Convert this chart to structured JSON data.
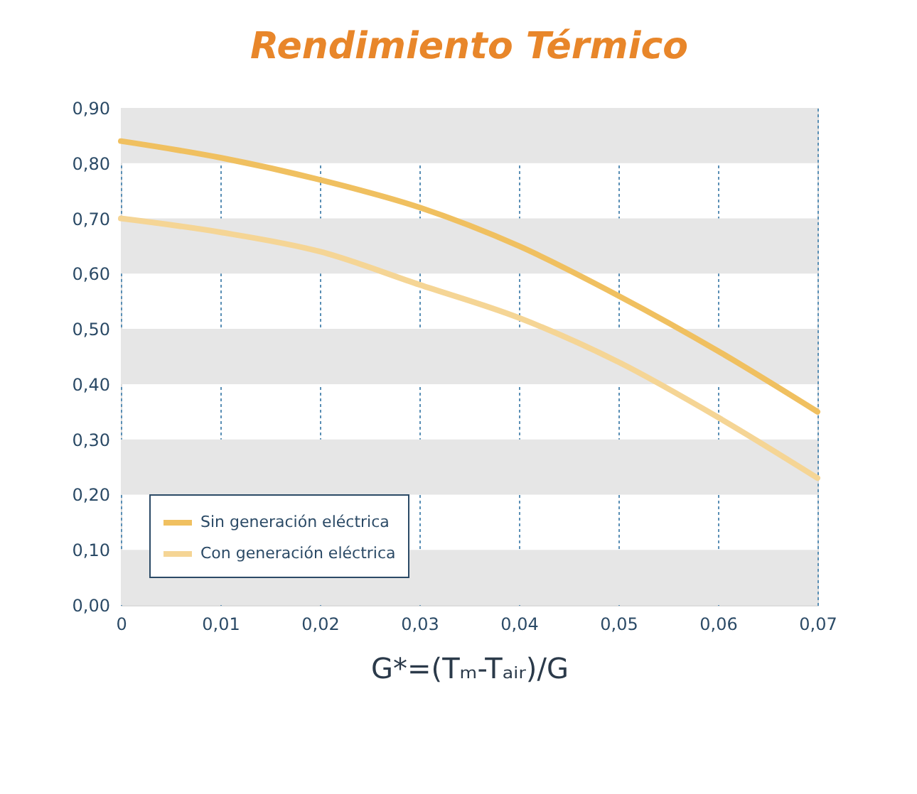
{
  "chart_data": {
    "type": "line",
    "title": "Rendimiento Térmico",
    "xlabel": "G*=(Tₘ-Tₐᵢᵣ)/G",
    "x": [
      0,
      0.01,
      0.02,
      0.03,
      0.04,
      0.05,
      0.06,
      0.07
    ],
    "series": [
      {
        "name": "Sin generación eléctrica",
        "color": "#f0c060",
        "values": [
          0.84,
          0.81,
          0.77,
          0.72,
          0.65,
          0.56,
          0.46,
          0.35
        ]
      },
      {
        "name": "Con generación eléctrica",
        "color": "#f5d595",
        "values": [
          0.7,
          0.675,
          0.64,
          0.58,
          0.52,
          0.44,
          0.34,
          0.23
        ]
      }
    ],
    "xlim": [
      0,
      0.07
    ],
    "xticks": [
      0,
      {
        "value": 0.01,
        "label": "0,01"
      },
      {
        "value": 0.02,
        "label": "0,02"
      },
      {
        "value": 0.03,
        "label": "0,03"
      },
      {
        "value": 0.04,
        "label": "0,04"
      },
      {
        "value": 0.05,
        "label": "0,05"
      },
      {
        "value": 0.06,
        "label": "0,06"
      },
      {
        "value": 0.07,
        "label": "0,07"
      }
    ],
    "ylim": [
      0,
      0.9
    ],
    "yticks": [
      {
        "value": 0,
        "label": "0,00"
      },
      {
        "value": 0.1,
        "label": "0,10"
      },
      {
        "value": 0.2,
        "label": "0,20"
      },
      {
        "value": 0.3,
        "label": "0,30"
      },
      {
        "value": 0.4,
        "label": "0,40"
      },
      {
        "value": 0.5,
        "label": "0,50"
      },
      {
        "value": 0.6,
        "label": "0,60"
      },
      {
        "value": 0.7,
        "label": "0,70"
      },
      {
        "value": 0.8,
        "label": "0,80"
      },
      {
        "value": 0.9,
        "label": "0,90"
      }
    ],
    "bands": [
      {
        "axis": "y",
        "from": 0,
        "to": 0.1,
        "color": "#e6e6e6"
      },
      {
        "axis": "y",
        "from": 0.2,
        "to": 0.3,
        "color": "#e6e6e6"
      },
      {
        "axis": "y",
        "from": 0.4,
        "to": 0.5,
        "color": "#e6e6e6"
      },
      {
        "axis": "y",
        "from": 0.6,
        "to": 0.7,
        "color": "#e6e6e6"
      },
      {
        "axis": "y",
        "from": 0.8,
        "to": 0.9,
        "color": "#e6e6e6"
      }
    ],
    "grid": "x",
    "legend": "bottom left",
    "marker": "none",
    "line_style": "solid"
  }
}
